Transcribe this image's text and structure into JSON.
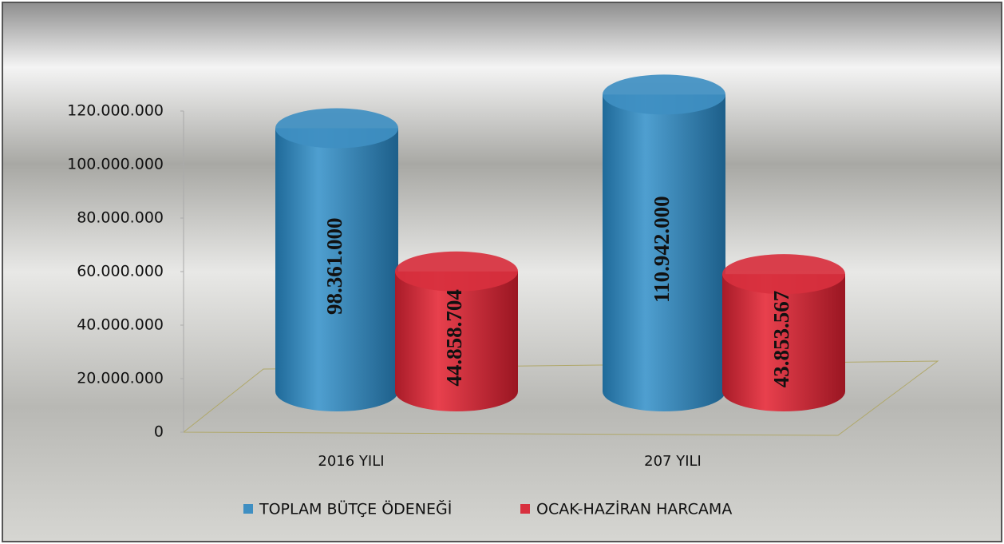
{
  "chart_data": {
    "type": "bar3d",
    "categories": [
      "2016 YILI",
      "207 YILI"
    ],
    "series": [
      {
        "name": "TOPLAM BÜTÇE ÖDENEĞİ",
        "color": "#3f8fc2",
        "values": [
          98361000,
          110942000
        ],
        "value_labels": [
          "98.361.000",
          "110.942.000"
        ]
      },
      {
        "name": "OCAK-HAZİRAN HARCAMA",
        "color": "#d8303e",
        "values": [
          44858704,
          43853567
        ],
        "value_labels": [
          "44.858.704",
          "43.853.567"
        ]
      }
    ],
    "ylim": [
      0,
      120000000
    ],
    "yticks": [
      0,
      {
        "value": 20000000,
        "label": "20.000.000"
      },
      {
        "value": 40000000,
        "label": "40.000.000"
      },
      {
        "value": 60000000,
        "label": "60.000.000"
      },
      {
        "value": 80000000,
        "label": "80.000.000"
      },
      {
        "value": 100000000,
        "label": "100.000.000"
      },
      {
        "value": 120000000,
        "label": "120.000.000"
      }
    ],
    "legend": "bottom"
  }
}
